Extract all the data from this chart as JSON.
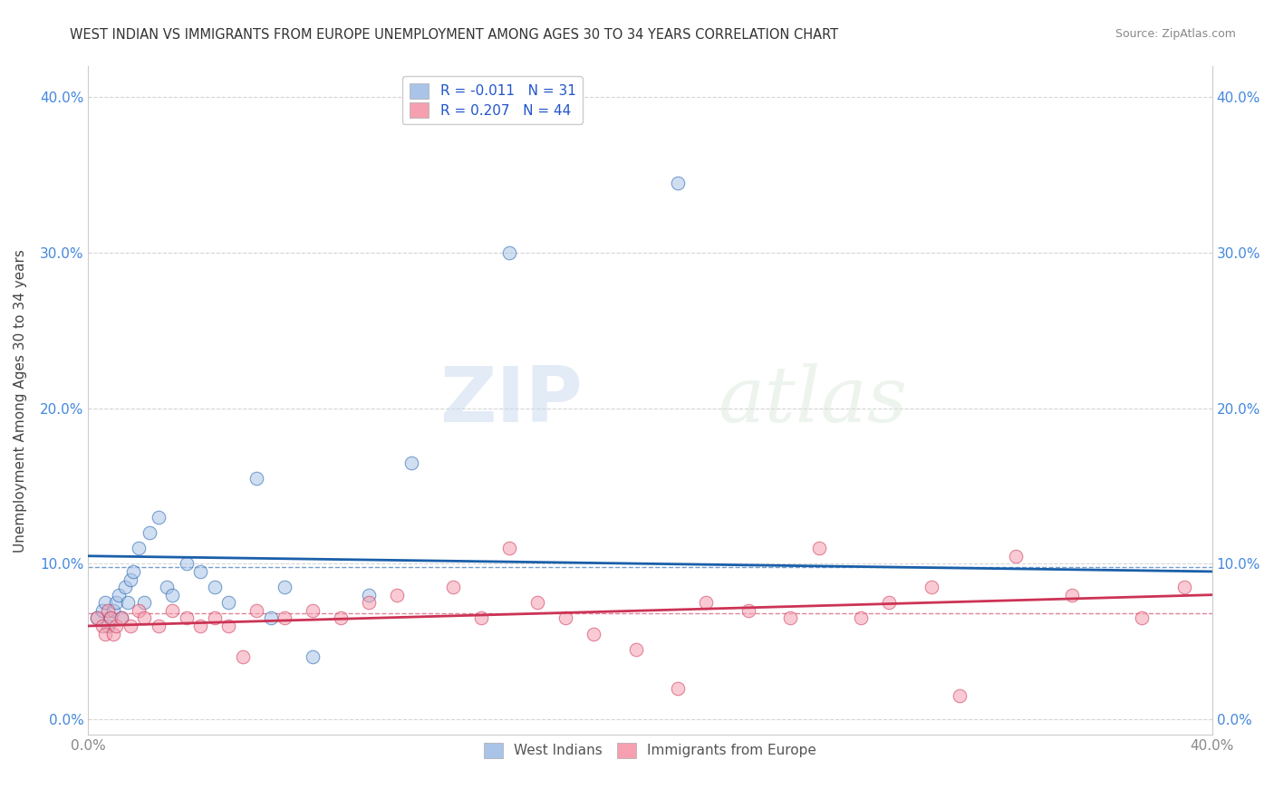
{
  "title": "WEST INDIAN VS IMMIGRANTS FROM EUROPE UNEMPLOYMENT AMONG AGES 30 TO 34 YEARS CORRELATION CHART",
  "source": "Source: ZipAtlas.com",
  "ylabel": "Unemployment Among Ages 30 to 34 years",
  "ytick_labels": [
    "0.0%",
    "10.0%",
    "20.0%",
    "30.0%",
    "40.0%"
  ],
  "ytick_values": [
    0.0,
    0.1,
    0.2,
    0.3,
    0.4
  ],
  "xtick_labels": [
    "0.0%",
    "",
    "",
    "",
    "40.0%"
  ],
  "xtick_values": [
    0.0,
    0.1,
    0.2,
    0.3,
    0.4
  ],
  "xlim": [
    0.0,
    0.4
  ],
  "ylim": [
    -0.01,
    0.42
  ],
  "legend_entries": [
    {
      "label": "West Indians",
      "R": -0.011,
      "N": 31,
      "color": "#aac4e8",
      "line_color": "#1a5faa"
    },
    {
      "label": "Immigrants from Europe",
      "R": 0.207,
      "N": 44,
      "color": "#f5a0b0",
      "line_color": "#cc3355"
    }
  ],
  "west_indian_x": [
    0.003,
    0.005,
    0.006,
    0.007,
    0.008,
    0.009,
    0.01,
    0.011,
    0.012,
    0.013,
    0.014,
    0.015,
    0.016,
    0.018,
    0.02,
    0.022,
    0.025,
    0.028,
    0.03,
    0.035,
    0.04,
    0.045,
    0.05,
    0.06,
    0.065,
    0.07,
    0.08,
    0.1,
    0.115,
    0.15,
    0.21
  ],
  "west_indian_y": [
    0.065,
    0.07,
    0.075,
    0.06,
    0.065,
    0.07,
    0.075,
    0.08,
    0.065,
    0.085,
    0.075,
    0.09,
    0.095,
    0.11,
    0.075,
    0.12,
    0.13,
    0.085,
    0.08,
    0.1,
    0.095,
    0.085,
    0.075,
    0.155,
    0.065,
    0.085,
    0.04,
    0.08,
    0.165,
    0.3,
    0.345
  ],
  "europe_x": [
    0.003,
    0.005,
    0.006,
    0.007,
    0.008,
    0.009,
    0.01,
    0.012,
    0.015,
    0.018,
    0.02,
    0.025,
    0.03,
    0.035,
    0.04,
    0.045,
    0.05,
    0.055,
    0.06,
    0.07,
    0.08,
    0.09,
    0.1,
    0.11,
    0.13,
    0.14,
    0.15,
    0.16,
    0.17,
    0.18,
    0.195,
    0.21,
    0.22,
    0.235,
    0.25,
    0.26,
    0.275,
    0.285,
    0.3,
    0.31,
    0.33,
    0.35,
    0.375,
    0.39
  ],
  "europe_y": [
    0.065,
    0.06,
    0.055,
    0.07,
    0.065,
    0.055,
    0.06,
    0.065,
    0.06,
    0.07,
    0.065,
    0.06,
    0.07,
    0.065,
    0.06,
    0.065,
    0.06,
    0.04,
    0.07,
    0.065,
    0.07,
    0.065,
    0.075,
    0.08,
    0.085,
    0.065,
    0.11,
    0.075,
    0.065,
    0.055,
    0.045,
    0.02,
    0.075,
    0.07,
    0.065,
    0.11,
    0.065,
    0.075,
    0.085,
    0.015,
    0.105,
    0.08,
    0.065,
    0.085
  ],
  "watermark_zip": "ZIP",
  "watermark_atlas": "atlas",
  "background_color": "#ffffff",
  "grid_color": "#d0d0d0",
  "scatter_size": 110,
  "scatter_alpha": 0.55,
  "line_width": 2.0
}
